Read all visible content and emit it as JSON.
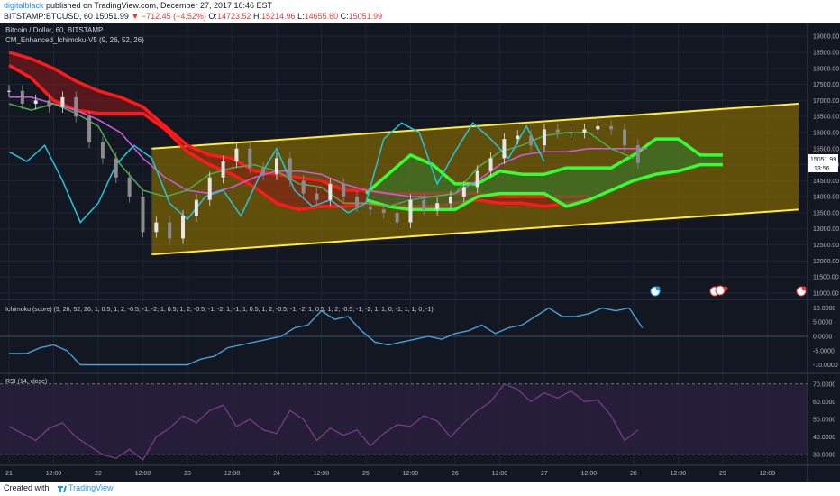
{
  "header": {
    "user": "digitalblack",
    "published": "published on TradingView.com, December 27, 2017 16:46 EST",
    "symbol": "BITSTAMP:BTCUSD, 60",
    "last": "15051.99",
    "change": "▼ −712.45 (−4.52%)",
    "o_label": "O:",
    "o": "14723.52",
    "h_label": "H:",
    "h": "15214.96",
    "l_label": "L:",
    "l": "14655.60",
    "c_label": "C:",
    "c": "15051.99"
  },
  "panes": {
    "price": {
      "title": "Bitcoin / Dollar, 60, BITSTAMP",
      "indicator": "CM_Enhanced_Ichimoku-V5 (9, 26, 52, 26)",
      "price_badge": "15051.99",
      "time_badge": "13:56"
    },
    "score": {
      "title": "Ichimoku (score) (9, 26, 52, 26, 1, 0.5, 1, 2, -0.5, -1, -2, 1, 0.5, 1, 2, -0.5, -1, -2, 1, -1, 1, 0.5, 1, 2, -0.5, -1, -2, 1, 0.5, 1, 2, -0.5, -1, -2, 1, 1, 0, -1, 1, 1, 0, -1)"
    },
    "rsi": {
      "title": "RSI (14, close)"
    }
  },
  "footer": {
    "created": "Created with",
    "brand": "TradingView"
  },
  "chart_data": [
    {
      "type": "line",
      "title": "Bitcoin / Dollar, 60, BITSTAMP",
      "ylim": [
        10800,
        19400
      ],
      "y_ticks": [
        "11000.00",
        "11500.00",
        "12000.00",
        "12500.00",
        "13000.00",
        "13500.00",
        "14000.00",
        "14500.00",
        "15000.00",
        "15500.00",
        "16000.00",
        "16500.00",
        "17000.00",
        "17500.00",
        "18000.00",
        "18500.00",
        "19000.00"
      ],
      "x_ticks": [
        "21",
        "12:00",
        "22",
        "12:00",
        "23",
        "12:00",
        "24",
        "12:00",
        "25",
        "12:00",
        "26",
        "12:00",
        "27",
        "12:00",
        "28",
        "12:00",
        "29",
        "12:00"
      ],
      "x_range": [
        0,
        17.8
      ],
      "series": [
        {
          "name": "",
          "style": "candles",
          "x": [
            0.0,
            0.3,
            0.6,
            0.9,
            1.2,
            1.5,
            1.8,
            2.1,
            2.4,
            2.7,
            3.0,
            3.3,
            3.6,
            3.9,
            4.2,
            4.5,
            4.8,
            5.1,
            5.4,
            5.7,
            6.0,
            6.3,
            6.6,
            6.9,
            7.2,
            7.5,
            7.8,
            8.1,
            8.4,
            8.7,
            9.0,
            9.3,
            9.6,
            9.9,
            10.2,
            10.5,
            10.8,
            11.1,
            11.4,
            11.7,
            12.0,
            12.3,
            12.6,
            12.9,
            13.2,
            13.5,
            13.8,
            14.1
          ],
          "values": [
            17300,
            16900,
            17000,
            16800,
            17100,
            16500,
            15700,
            15200,
            14600,
            14000,
            12900,
            13200,
            12700,
            13400,
            13900,
            14600,
            15100,
            15500,
            14900,
            14700,
            15200,
            14500,
            14100,
            13900,
            14400,
            14000,
            13700,
            13600,
            13500,
            13200,
            13900,
            13600,
            13800,
            14000,
            14300,
            14800,
            15200,
            15800,
            15900,
            15600,
            16100,
            16000,
            16000,
            16100,
            16200,
            16100,
            15600,
            15050
          ]
        },
        {
          "name": "",
          "style": "teal",
          "x": [
            0.0,
            0.4,
            0.8,
            1.2,
            1.6,
            2.0,
            2.4,
            2.8,
            3.2,
            3.6,
            4.0,
            4.4,
            4.8,
            5.2,
            5.6,
            6.0,
            6.4,
            6.8,
            7.2,
            7.6,
            8.0,
            8.4,
            8.8,
            9.2,
            9.6,
            10.0,
            10.4,
            10.8,
            11.2,
            11.6,
            12.0
          ],
          "values": [
            15400,
            15100,
            15600,
            14500,
            13200,
            13800,
            15000,
            15600,
            15200,
            13800,
            13300,
            14000,
            14200,
            13400,
            14600,
            15500,
            14200,
            13700,
            13900,
            13500,
            13800,
            15800,
            16300,
            16000,
            14400,
            15400,
            16300,
            15800,
            15200,
            16200,
            15100
          ]
        },
        {
          "name": "",
          "style": "green",
          "x": [
            0.0,
            0.5,
            1.0,
            1.5,
            2.0,
            2.5,
            3.0,
            3.5,
            4.0,
            4.5,
            5.0,
            5.5,
            6.0,
            6.5,
            7.0,
            7.5,
            8.0,
            8.5,
            9.0,
            9.5,
            10.0,
            10.5,
            11.0,
            11.5,
            12.0,
            12.5,
            13.0,
            13.5,
            14.0
          ],
          "values": [
            16900,
            16700,
            16900,
            16600,
            16200,
            15000,
            14200,
            14000,
            14200,
            14700,
            14900,
            15000,
            14800,
            14400,
            14300,
            13800,
            13800,
            13700,
            13900,
            14000,
            14100,
            14900,
            15400,
            15600,
            15900,
            16000,
            16000,
            15500,
            15200
          ]
        },
        {
          "name": "",
          "style": "magenta",
          "x": [
            0.0,
            0.5,
            1.0,
            1.5,
            2.0,
            2.5,
            3.0,
            3.5,
            4.0,
            4.5,
            5.0,
            5.5,
            6.0,
            6.5,
            7.0,
            7.5,
            8.0,
            8.5,
            9.0,
            9.5,
            10.0,
            10.5,
            11.0,
            11.5,
            12.0,
            12.5,
            13.0,
            13.5,
            14.0,
            14.3
          ],
          "values": [
            17100,
            17100,
            16900,
            16700,
            16400,
            16000,
            15200,
            14600,
            14200,
            14100,
            14300,
            14600,
            14800,
            14800,
            14700,
            14400,
            14200,
            14100,
            14000,
            14000,
            14100,
            14500,
            15000,
            15300,
            15400,
            15400,
            15500,
            15500,
            15500,
            15500
          ]
        },
        {
          "name": "",
          "style": "cloud_red_a",
          "x": [
            0.0,
            0.5,
            1.0,
            1.5,
            2.0,
            2.5,
            3.0,
            3.5,
            4.0,
            4.5,
            5.0,
            5.5,
            6.0,
            6.5,
            7.0,
            7.5,
            8.0,
            8.5,
            9.0,
            9.5,
            10.0,
            10.5,
            11.0,
            11.5,
            12.0,
            12.5,
            13.0
          ],
          "values": [
            18500,
            18300,
            18000,
            17600,
            17300,
            17100,
            16800,
            16200,
            15600,
            15300,
            15200,
            14800,
            14700,
            14600,
            14500,
            14200,
            14200,
            14100,
            14100,
            14100,
            14100,
            14100,
            14000,
            14000,
            14000,
            14000,
            14000
          ]
        },
        {
          "name": "",
          "style": "cloud_red_b",
          "x": [
            0.0,
            0.5,
            1.0,
            1.5,
            2.0,
            2.5,
            3.0,
            3.5,
            4.0,
            4.5,
            5.0,
            5.5,
            6.0,
            6.5,
            7.0,
            7.5,
            8.0,
            8.5,
            9.0,
            9.5,
            10.0,
            10.5,
            11.0,
            11.5,
            12.0,
            12.5,
            13.0
          ],
          "values": [
            18100,
            17700,
            17000,
            16700,
            16600,
            16600,
            16600,
            16100,
            15400,
            15000,
            14700,
            14300,
            13800,
            13600,
            13700,
            13700,
            13800,
            13700,
            13700,
            13700,
            13800,
            13900,
            13800,
            13800,
            13700,
            13800,
            13900
          ]
        },
        {
          "name": "",
          "style": "cloud_green_a",
          "x": [
            8.0,
            8.5,
            9.0,
            9.5,
            10.0,
            10.5,
            11.0,
            11.5,
            12.0,
            12.5,
            13.0,
            13.5,
            14.0,
            14.5,
            15.0,
            15.5,
            16.0
          ],
          "values": [
            14100,
            14700,
            15300,
            15000,
            14400,
            14400,
            14800,
            14700,
            14700,
            14900,
            14900,
            14900,
            15300,
            15800,
            15800,
            15300,
            15300
          ]
        },
        {
          "name": "",
          "style": "cloud_green_b",
          "x": [
            8.0,
            8.5,
            9.0,
            9.5,
            10.0,
            10.5,
            11.0,
            11.5,
            12.0,
            12.5,
            13.0,
            13.5,
            14.0,
            14.5,
            15.0,
            15.5,
            16.0
          ],
          "values": [
            13900,
            13700,
            13600,
            13600,
            13600,
            14000,
            14100,
            14100,
            14100,
            13700,
            13900,
            14200,
            14500,
            14700,
            14800,
            15000,
            15000
          ]
        }
      ],
      "channel": {
        "x": [
          3.2,
          17.7
        ],
        "upper": [
          15500,
          16900
        ],
        "lower": [
          12200,
          13600
        ]
      }
    },
    {
      "type": "line",
      "title": "Ichimoku (score)",
      "ylim": [
        -13,
        13
      ],
      "y_ticks": [
        "10.0000",
        "5.0000",
        "0.0000",
        "-5.0000",
        "-10.0000"
      ],
      "series": [
        {
          "name": "",
          "x": [
            0.0,
            0.4,
            0.7,
            1.0,
            1.3,
            1.6,
            1.9,
            2.2,
            2.5,
            2.8,
            3.1,
            3.4,
            3.7,
            4.0,
            4.3,
            4.6,
            4.9,
            5.2,
            5.5,
            5.8,
            6.1,
            6.4,
            6.7,
            7.0,
            7.3,
            7.6,
            7.9,
            8.2,
            8.5,
            8.8,
            9.1,
            9.4,
            9.7,
            10.0,
            10.3,
            10.6,
            10.9,
            11.2,
            11.5,
            11.8,
            12.1,
            12.4,
            12.7,
            13.0,
            13.3,
            13.6,
            13.9,
            14.2
          ],
          "values": [
            -6,
            -6,
            -4,
            -3,
            -5,
            -10,
            -10,
            -10,
            -10,
            -10,
            -10,
            -10,
            -10,
            -10,
            -8,
            -7,
            -4,
            -3,
            -2,
            -1,
            0,
            3,
            4,
            9,
            6,
            7,
            2,
            -2,
            -3,
            -2,
            -1,
            0,
            -1,
            1,
            2,
            4,
            1,
            3,
            4,
            7,
            10,
            7,
            7,
            8,
            10,
            9,
            10,
            3
          ]
        }
      ]
    },
    {
      "type": "line",
      "title": "RSI (14, close)",
      "ylim": [
        24,
        76
      ],
      "y_ticks": [
        "70.0000",
        "60.0000",
        "50.0000",
        "40.0000",
        "30.0000"
      ],
      "bands": [
        30,
        70
      ],
      "series": [
        {
          "name": "",
          "x": [
            0.0,
            0.3,
            0.6,
            0.9,
            1.2,
            1.5,
            1.8,
            2.1,
            2.4,
            2.7,
            3.0,
            3.3,
            3.6,
            3.9,
            4.2,
            4.5,
            4.8,
            5.1,
            5.4,
            5.7,
            6.0,
            6.3,
            6.6,
            6.9,
            7.2,
            7.5,
            7.8,
            8.1,
            8.4,
            8.7,
            9.0,
            9.3,
            9.6,
            9.9,
            10.2,
            10.5,
            10.8,
            11.1,
            11.4,
            11.7,
            12.0,
            12.3,
            12.6,
            12.9,
            13.2,
            13.5,
            13.8,
            14.1
          ],
          "values": [
            46,
            42,
            38,
            45,
            48,
            40,
            35,
            30,
            28,
            33,
            27,
            40,
            45,
            52,
            48,
            55,
            58,
            46,
            50,
            44,
            42,
            55,
            50,
            38,
            45,
            41,
            44,
            35,
            42,
            47,
            46,
            52,
            49,
            40,
            48,
            55,
            60,
            70,
            67,
            60,
            65,
            62,
            66,
            60,
            61,
            52,
            38,
            44
          ]
        }
      ]
    }
  ]
}
